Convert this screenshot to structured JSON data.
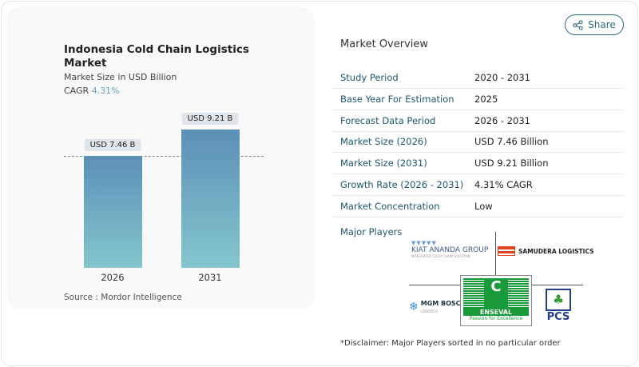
{
  "share_label": "Share",
  "chart_card": {
    "title": "Indonesia Cold Chain Logistics Market",
    "subtitle": "Market Size in USD Billion",
    "cagr_label": "CAGR",
    "cagr_value": "4.31%",
    "source": "Source :  Mordor Intelligence"
  },
  "chart_data": {
    "type": "bar",
    "categories": [
      "2026",
      "2031"
    ],
    "values": [
      7.46,
      9.21
    ],
    "data_labels": [
      "USD 7.46 B",
      "USD 9.21 B"
    ],
    "ylabel": "Market Size in USD Billion",
    "colors": [
      "#5b90b8",
      "#84c6cc"
    ]
  },
  "overview": {
    "title": "Market Overview",
    "rows": [
      {
        "label": "Study Period",
        "value": "2020 - 2031"
      },
      {
        "label": "Base Year For Estimation",
        "value": "2025"
      },
      {
        "label": "Forecast Data Period",
        "value": "2026 - 2031"
      },
      {
        "label": "Market Size (2026)",
        "value": "USD 7.46 Billion"
      },
      {
        "label": "Market Size (2031)",
        "value": "USD 9.21 Billion"
      },
      {
        "label": "Growth Rate (2026 - 2031)",
        "value": "4.31% CAGR"
      },
      {
        "label": "Market Concentration",
        "value": "Low"
      }
    ],
    "major_players_label": "Major Players",
    "players": [
      "KIAT ANANDA GROUP",
      "SAMUDERA LOGISTICS",
      "MGM BOSCO",
      "ENSEVAL",
      "PCS"
    ],
    "player_taglines": [
      "INTEGRATED COLD CHAIN SOLUTION",
      "LOGISTICS",
      "Passion for Excellence"
    ],
    "disclaimer": "*Disclaimer: Major Players sorted in no particular order"
  }
}
